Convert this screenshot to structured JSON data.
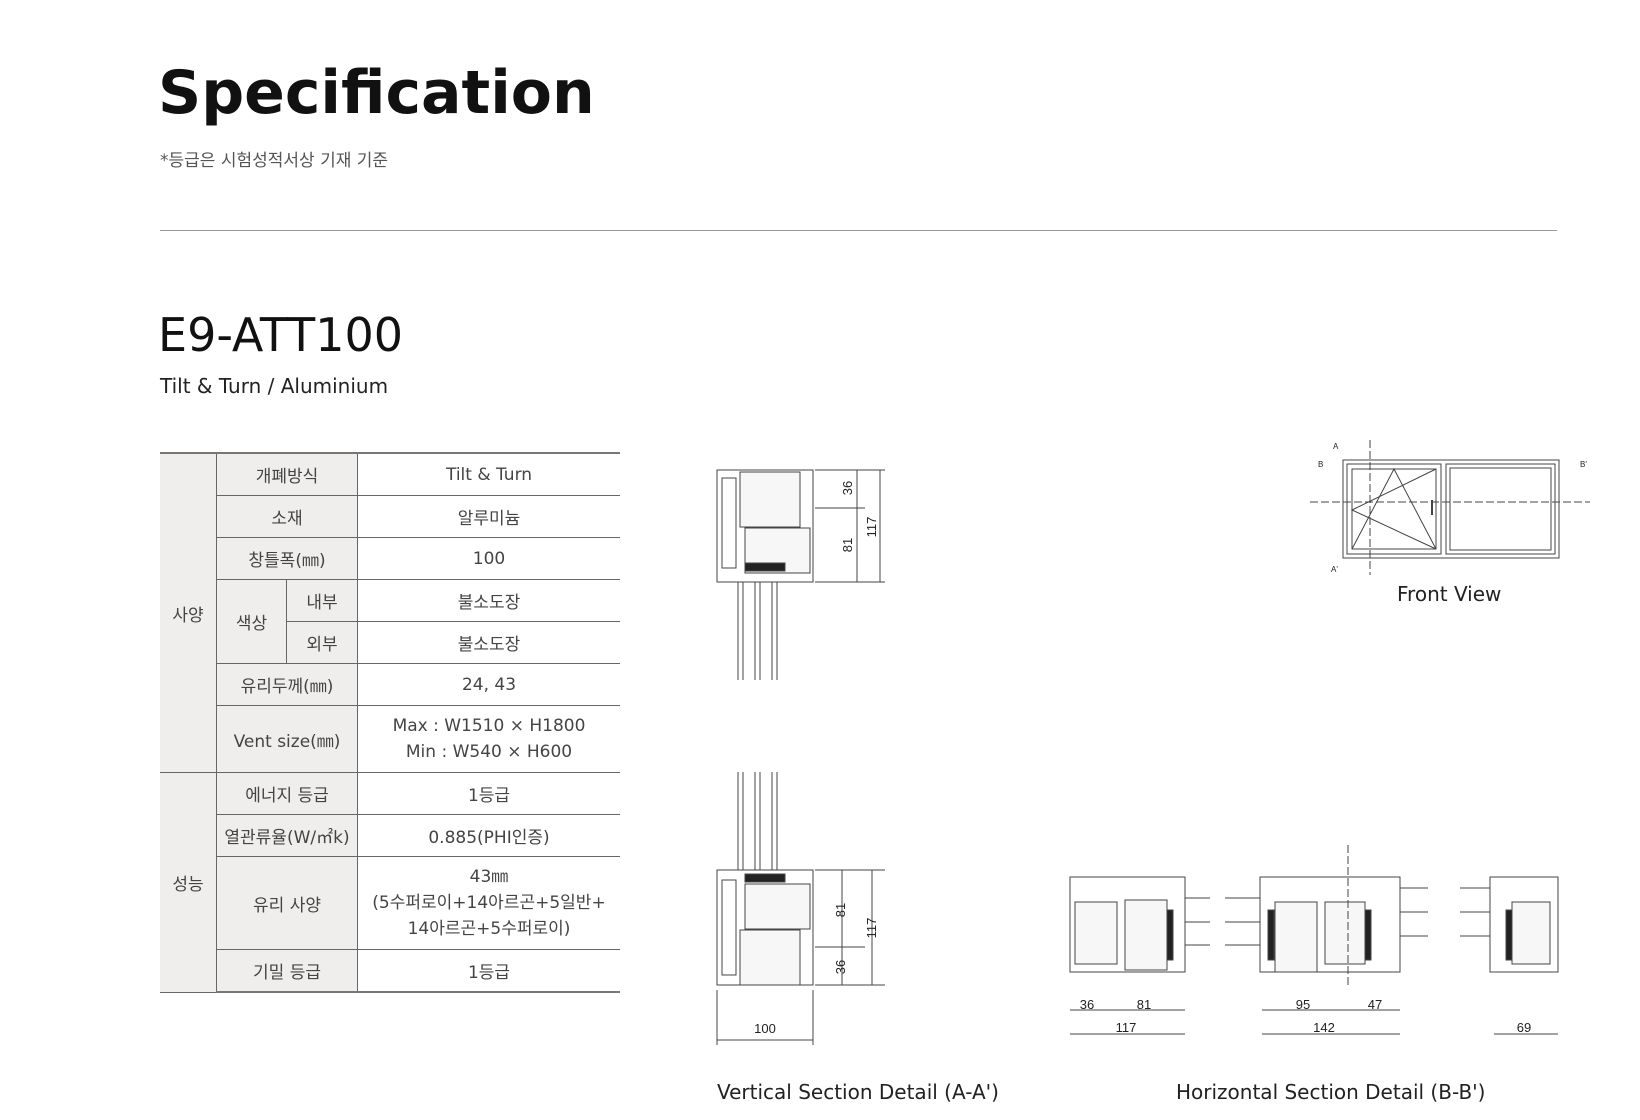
{
  "header": {
    "title": "Specification",
    "note": "*등급은 시험성적서상 기재 기준"
  },
  "product": {
    "model": "E9-ATT100",
    "subtitle": "Tilt & Turn / Aluminium"
  },
  "spec_table": {
    "group_spec": "사양",
    "group_perf": "성능",
    "rows": [
      {
        "label": "개폐방식",
        "value": "Tilt & Turn"
      },
      {
        "label": "소재",
        "value": "알루미늄"
      },
      {
        "label": "창틀폭(㎜)",
        "value": "100"
      },
      {
        "label": "색상",
        "sub": "내부",
        "value": "불소도장"
      },
      {
        "label": "색상",
        "sub": "외부",
        "value": "불소도장"
      },
      {
        "label": "유리두께(㎜)",
        "value": "24, 43"
      },
      {
        "label": "Vent size(㎜)",
        "value": "Max : W1510 × H1800",
        "value2": "Min : W540 × H600"
      },
      {
        "label": "에너지 등급",
        "value": "1등급"
      },
      {
        "label": "열관류율(W/㎡k)",
        "value": "0.885(PHI인증)"
      },
      {
        "label": "유리 사양",
        "value": "43㎜",
        "value2": "(5수퍼로이+14아르곤+5일반+",
        "value3": "14아르곤+5수퍼로이)"
      },
      {
        "label": "기밀 등급",
        "value": "1등급"
      }
    ]
  },
  "drawings": {
    "vertical": {
      "caption": "Vertical Section Detail (A-A')",
      "dims_top": [
        "36",
        "81",
        "117"
      ],
      "dims_bottom": [
        "81",
        "36",
        "117"
      ],
      "width": "100"
    },
    "horizontal": {
      "caption": "Horizontal Section Detail (B-B')",
      "dims": [
        "36",
        "81",
        "117",
        "95",
        "47",
        "142",
        "69"
      ]
    },
    "front": {
      "caption": "Front View",
      "labels": [
        "A",
        "A'",
        "B",
        "B'"
      ]
    }
  }
}
